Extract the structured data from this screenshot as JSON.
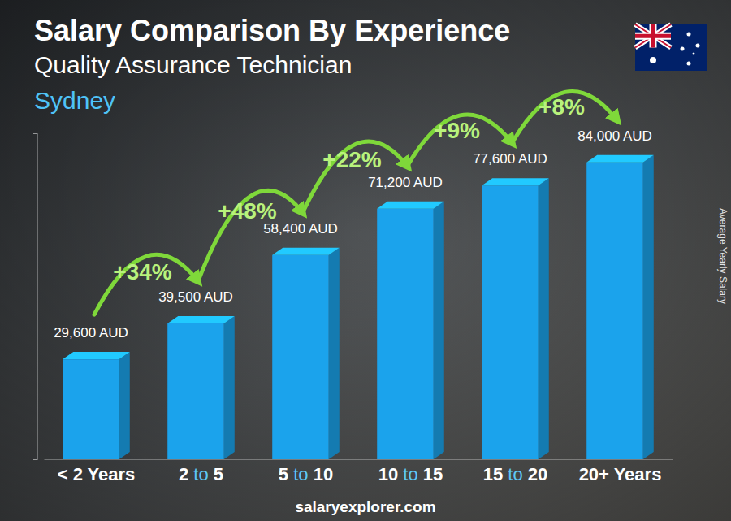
{
  "chart_data": {
    "type": "bar",
    "title": "Salary Comparison By Experience",
    "subtitle": "Quality Assurance Technician",
    "annotations": [
      "Sydney",
      "salaryexplorer.com"
    ],
    "ylabel": "Average Yearly Salary",
    "categories": [
      "< 2 Years",
      "2 to 5",
      "5 to 10",
      "10 to 15",
      "15 to 20",
      "20+ Years"
    ],
    "values": [
      29600,
      39500,
      58400,
      71200,
      77600,
      84000
    ],
    "value_labels": [
      "29,600 AUD",
      "39,500 AUD",
      "58,400 AUD",
      "71,200 AUD",
      "77,600 AUD",
      "84,000 AUD"
    ],
    "growth": {
      "values": [
        34,
        48,
        22,
        9,
        8
      ],
      "value_labels": [
        "+34%",
        "+48%",
        "+22%",
        "+9%",
        "+8%"
      ]
    },
    "color": "#1ba3ec",
    "ylim": [
      0,
      90000
    ],
    "yticks": [
      0,
      90000
    ],
    "grid": false,
    "data_labels": true,
    "tick_labels": "x"
  }
}
